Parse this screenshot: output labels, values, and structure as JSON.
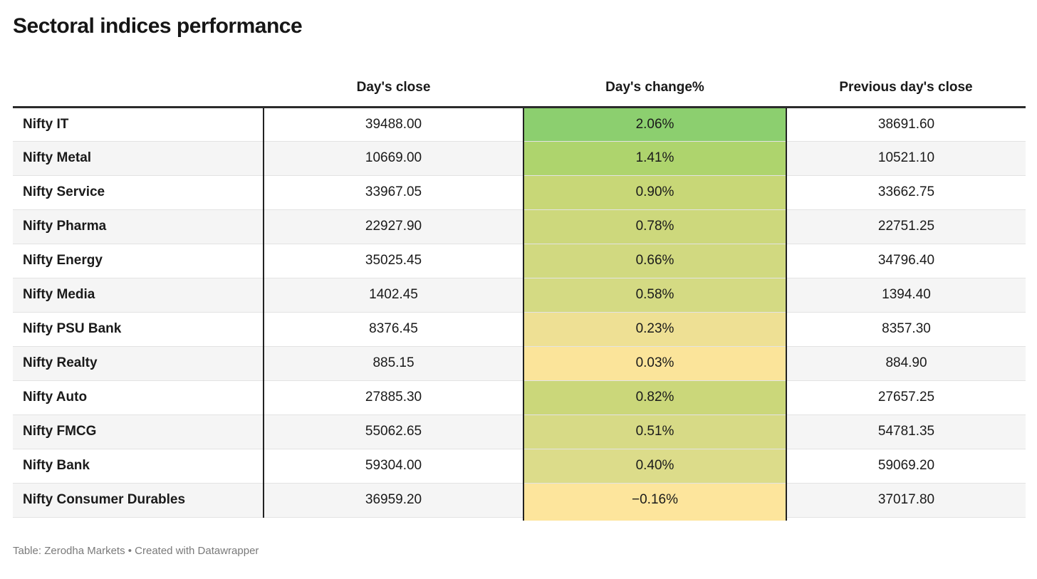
{
  "title": "Sectoral indices performance",
  "table": {
    "columns": [
      "",
      "Day's close",
      "Day's change%",
      "Previous day's close"
    ],
    "rows": [
      {
        "label": "Nifty IT",
        "close": "39488.00",
        "change": "2.06%",
        "change_color": "#8ccf6f",
        "prev_close": "38691.60"
      },
      {
        "label": "Nifty Metal",
        "close": "10669.00",
        "change": "1.41%",
        "change_color": "#aed46d",
        "prev_close": "10521.10"
      },
      {
        "label": "Nifty Service",
        "close": "33967.05",
        "change": "0.90%",
        "change_color": "#c8d777",
        "prev_close": "33662.75"
      },
      {
        "label": "Nifty Pharma",
        "close": "22927.90",
        "change": "0.78%",
        "change_color": "#cdd87c",
        "prev_close": "22751.25"
      },
      {
        "label": "Nifty Energy",
        "close": "35025.45",
        "change": "0.66%",
        "change_color": "#d1d980",
        "prev_close": "34796.40"
      },
      {
        "label": "Nifty Media",
        "close": "1402.45",
        "change": "0.58%",
        "change_color": "#d4da83",
        "prev_close": "1394.40"
      },
      {
        "label": "Nifty PSU Bank",
        "close": "8376.45",
        "change": "0.23%",
        "change_color": "#eee094",
        "prev_close": "8357.30"
      },
      {
        "label": "Nifty Realty",
        "close": "885.15",
        "change": "0.03%",
        "change_color": "#fbe49a",
        "prev_close": "884.90"
      },
      {
        "label": "Nifty Auto",
        "close": "27885.30",
        "change": "0.82%",
        "change_color": "#cbd77a",
        "prev_close": "27657.25"
      },
      {
        "label": "Nifty FMCG",
        "close": "55062.65",
        "change": "0.51%",
        "change_color": "#d7da86",
        "prev_close": "54781.35"
      },
      {
        "label": "Nifty Bank",
        "close": "59304.00",
        "change": "0.40%",
        "change_color": "#dcdc8a",
        "prev_close": "59069.20"
      },
      {
        "label": "Nifty Consumer Durables",
        "close": "36959.20",
        "change": "−0.16%",
        "change_color": "#fde59c",
        "prev_close": "37017.80"
      }
    ]
  },
  "footer": {
    "text": "Table: Zerodha Markets • Created with Datawrapper"
  },
  "colors": {
    "heatmap_high": "#8ccf6f",
    "heatmap_low": "#fde59c",
    "row_alt_background": "#f5f5f5",
    "border_dark": "#222222",
    "footer_text": "#7a7a7a"
  },
  "chart_data": {
    "type": "table",
    "title": "Sectoral indices performance",
    "columns": [
      "",
      "Day's close",
      "Day's change%",
      "Previous day's close"
    ],
    "rows": [
      [
        "Nifty IT",
        39488.0,
        "2.06%",
        38691.6
      ],
      [
        "Nifty Metal",
        10669.0,
        "1.41%",
        10521.1
      ],
      [
        "Nifty Service",
        33967.05,
        "0.90%",
        33662.75
      ],
      [
        "Nifty Pharma",
        22927.9,
        "0.78%",
        22751.25
      ],
      [
        "Nifty Energy",
        35025.45,
        "0.66%",
        34796.4
      ],
      [
        "Nifty Media",
        1402.45,
        "0.58%",
        1394.4
      ],
      [
        "Nifty PSU Bank",
        8376.45,
        "0.23%",
        8357.3
      ],
      [
        "Nifty Realty",
        885.15,
        "0.03%",
        884.9
      ],
      [
        "Nifty Auto",
        27885.3,
        "0.82%",
        27657.25
      ],
      [
        "Nifty FMCG",
        55062.65,
        "0.51%",
        54781.35
      ],
      [
        "Nifty Bank",
        59304.0,
        "0.40%",
        59069.2
      ],
      [
        "Nifty Consumer Durables",
        36959.2,
        "-0.16%",
        37017.8
      ]
    ],
    "notes": "Day's change% column is color-scaled from green (highest) to yellow (lowest/negative)",
    "source": "Table: Zerodha Markets • Created with Datawrapper"
  }
}
